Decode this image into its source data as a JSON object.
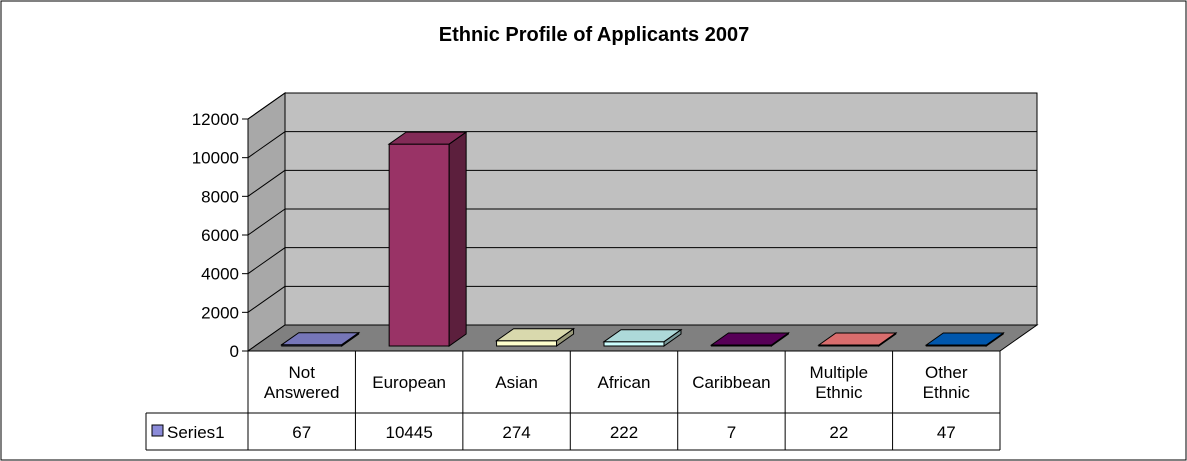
{
  "chart_data": {
    "type": "bar",
    "title": "Ethnic Profile of Applicants 2007",
    "xlabel": "",
    "ylabel": "",
    "ylim": [
      0,
      12000
    ],
    "yticks": [
      0,
      2000,
      4000,
      6000,
      8000,
      10000,
      12000
    ],
    "categories": [
      [
        "Not",
        "Answered"
      ],
      [
        "European"
      ],
      [
        "Asian"
      ],
      [
        "African"
      ],
      [
        "Caribbean"
      ],
      [
        "Multiple",
        "Ethnic"
      ],
      [
        "Other",
        "Ethnic"
      ]
    ],
    "series": [
      {
        "name": "Series1",
        "values": [
          67,
          10445,
          274,
          222,
          7,
          22,
          47
        ]
      }
    ],
    "bar_colors": [
      "#8b8bd9",
      "#993366",
      "#ffffcc",
      "#ccffff",
      "#660066",
      "#ff8080",
      "#0066cc"
    ],
    "grid": true,
    "data_table": true,
    "three_d": true
  }
}
